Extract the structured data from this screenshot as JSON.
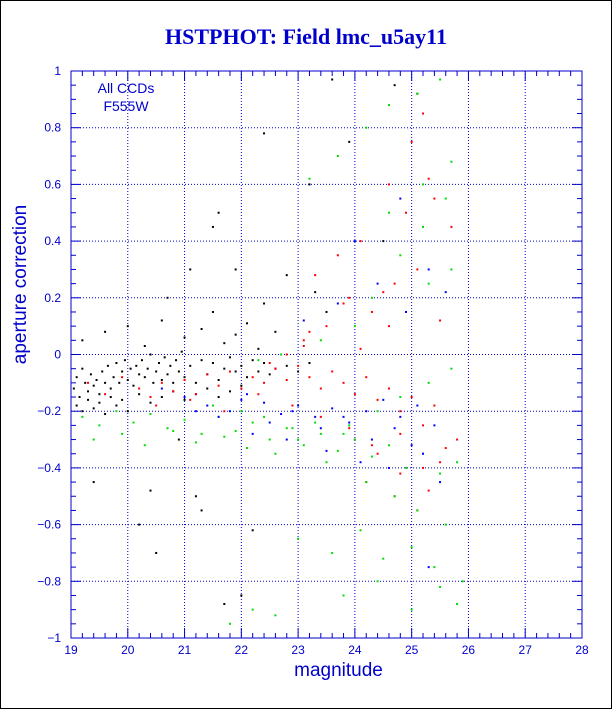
{
  "colors": {
    "axis": "#0000cc",
    "grid": "#0000cc",
    "title": "#0000cc",
    "series": [
      "#000000",
      "#ff0000",
      "#00dd00",
      "#0000ff"
    ]
  },
  "chart_data": {
    "type": "scatter",
    "title": "HSTPHOT: Field lmc_u5ay11",
    "xlabel": "magnitude",
    "ylabel": "aperture correction",
    "xlim": [
      19,
      28
    ],
    "ylim": [
      -1,
      1
    ],
    "grid": true,
    "xticks": [
      19,
      20,
      21,
      22,
      23,
      24,
      25,
      26,
      27,
      28
    ],
    "yticks": [
      -1,
      -0.8,
      -0.6,
      -0.4,
      -0.2,
      0,
      0.2,
      0.4,
      0.6,
      0.8,
      1
    ],
    "xtick_labels": [
      "19",
      "20",
      "21",
      "22",
      "23",
      "24",
      "25",
      "26",
      "27",
      "28"
    ],
    "ytick_labels": [
      "−1",
      "−0.8",
      "−0.6",
      "−0.4",
      "−0.2",
      "0",
      "0.2",
      "0.4",
      "0.6",
      "0.8",
      "1"
    ],
    "annotations": [
      "All CCDs",
      "F555W"
    ],
    "series": [
      {
        "color": "#000000",
        "x": [
          19.05,
          19.1,
          19.15,
          19.2,
          19.25,
          19.3,
          19.35,
          19.4,
          19.45,
          19.5,
          19.55,
          19.6,
          19.65,
          19.7,
          19.75,
          19.8,
          19.85,
          19.9,
          19.95,
          20.0,
          20.05,
          20.1,
          20.15,
          20.2,
          20.25,
          20.3,
          20.35,
          20.4,
          20.45,
          20.5,
          20.55,
          20.6,
          20.65,
          20.7,
          20.75,
          20.8,
          20.85,
          20.9,
          20.95,
          21.0,
          21.1,
          21.2,
          21.3,
          21.4,
          21.5,
          21.6,
          21.7,
          21.8,
          21.9,
          22.0,
          22.1,
          22.2,
          22.3,
          22.4,
          22.5,
          22.6,
          22.8,
          23.0,
          23.2,
          19.1,
          19.2,
          19.3,
          19.4,
          19.5,
          19.6,
          19.7,
          19.8,
          19.9,
          20.0,
          20.2,
          20.4,
          20.6,
          20.8,
          21.0,
          21.2,
          21.4,
          21.6,
          21.8,
          22.0,
          19.2,
          19.6,
          20.0,
          20.3,
          20.6,
          21.0,
          21.3,
          21.5,
          21.7,
          21.9,
          22.1,
          22.3,
          22.4,
          22.6,
          23.3,
          23.5,
          21.6,
          21.5,
          22.4,
          21.1,
          20.7,
          19.4,
          20.5,
          21.2,
          20.2,
          20.9,
          22.8,
          23.9,
          24.5,
          23.2,
          21.9,
          22.0,
          21.3,
          20.4,
          21.7,
          22.2,
          23.6,
          24.7,
          25.1
        ],
        "y": [
          -0.12,
          -0.08,
          -0.15,
          -0.05,
          -0.1,
          -0.13,
          -0.07,
          -0.11,
          -0.09,
          -0.14,
          -0.06,
          -0.1,
          -0.04,
          -0.12,
          -0.08,
          -0.03,
          -0.1,
          -0.06,
          -0.02,
          -0.09,
          -0.05,
          -0.11,
          -0.04,
          -0.07,
          -0.02,
          -0.08,
          -0.05,
          0.0,
          -0.1,
          -0.06,
          -0.03,
          -0.09,
          -0.01,
          -0.07,
          -0.04,
          -0.1,
          -0.02,
          -0.06,
          0.01,
          -0.08,
          -0.04,
          -0.1,
          -0.02,
          -0.07,
          -0.03,
          -0.09,
          -0.05,
          -0.01,
          -0.06,
          -0.04,
          -0.08,
          -0.02,
          -0.06,
          -0.03,
          -0.07,
          -0.05,
          -0.04,
          -0.06,
          -0.03,
          -0.18,
          -0.2,
          -0.16,
          -0.19,
          -0.17,
          -0.21,
          -0.15,
          -0.18,
          -0.16,
          -0.2,
          -0.14,
          -0.17,
          -0.15,
          -0.13,
          -0.16,
          -0.14,
          -0.12,
          -0.15,
          -0.13,
          -0.11,
          0.05,
          0.08,
          0.1,
          0.03,
          0.12,
          0.06,
          0.09,
          0.15,
          0.04,
          0.07,
          0.11,
          0.02,
          0.18,
          0.08,
          0.22,
          0.15,
          0.5,
          0.45,
          0.78,
          0.3,
          0.2,
          -0.45,
          -0.7,
          -0.5,
          -0.6,
          -0.3,
          0.28,
          0.75,
          0.4,
          0.6,
          0.3,
          -0.85,
          -0.55,
          -0.48,
          -0.88,
          -0.62,
          0.97,
          0.95,
          0.92
        ]
      },
      {
        "color": "#ff0000",
        "x": [
          19.3,
          19.6,
          19.9,
          20.2,
          20.4,
          20.6,
          20.8,
          21.0,
          21.2,
          21.4,
          21.6,
          21.8,
          22.0,
          22.2,
          22.4,
          22.6,
          22.8,
          23.0,
          23.2,
          23.4,
          23.6,
          23.8,
          24.0,
          24.2,
          24.4,
          24.6,
          24.8,
          25.0,
          25.2,
          25.4,
          20.5,
          21.1,
          21.7,
          22.3,
          22.9,
          23.1,
          23.5,
          23.9,
          24.3,
          24.7,
          25.1,
          25.5,
          23.3,
          23.7,
          24.1,
          24.5,
          24.9,
          25.3,
          25.7,
          24.0,
          24.4,
          24.8,
          25.2,
          25.6,
          23.2,
          23.8,
          24.6,
          25.0,
          25.4,
          24.2,
          24.7,
          25.1,
          25.5,
          23.4,
          23.9,
          24.3,
          24.8,
          25.3,
          25.8,
          24.1,
          24.6,
          25.2,
          22.5,
          22.8,
          23.1
        ],
        "y": [
          -0.1,
          -0.14,
          -0.08,
          -0.12,
          -0.15,
          -0.1,
          -0.13,
          -0.09,
          -0.14,
          -0.07,
          -0.11,
          -0.06,
          -0.12,
          -0.08,
          -0.1,
          -0.05,
          -0.09,
          -0.04,
          -0.08,
          -0.12,
          -0.06,
          -0.1,
          -0.14,
          -0.08,
          -0.16,
          -0.12,
          -0.2,
          -0.15,
          -0.25,
          -0.18,
          -0.18,
          -0.16,
          -0.2,
          -0.14,
          -0.18,
          0.05,
          0.1,
          0.2,
          0.15,
          0.25,
          0.3,
          0.12,
          0.28,
          0.35,
          0.4,
          0.22,
          0.5,
          0.62,
          0.45,
          -0.3,
          -0.35,
          -0.28,
          -0.4,
          -0.33,
          0.08,
          0.18,
          0.6,
          0.75,
          0.55,
          -0.45,
          -0.5,
          -0.55,
          -0.38,
          -0.22,
          -0.26,
          -0.32,
          -0.42,
          -0.48,
          -0.3,
          0.02,
          0.1,
          0.85,
          -0.03,
          0.0,
          0.03
        ]
      },
      {
        "color": "#00dd00",
        "x": [
          19.2,
          19.5,
          19.8,
          20.1,
          20.4,
          20.7,
          21.0,
          21.3,
          21.6,
          21.9,
          22.2,
          22.5,
          22.8,
          23.1,
          23.4,
          23.7,
          24.0,
          24.3,
          24.6,
          24.9,
          25.2,
          25.5,
          25.8,
          19.4,
          19.9,
          20.3,
          20.8,
          21.2,
          21.7,
          22.1,
          22.6,
          23.0,
          23.5,
          23.9,
          24.4,
          24.8,
          25.3,
          25.7,
          21.5,
          22.0,
          22.4,
          22.9,
          23.3,
          23.8,
          24.2,
          24.7,
          25.1,
          25.6,
          23.0,
          23.6,
          24.1,
          24.5,
          25.0,
          25.4,
          25.9,
          24.3,
          24.8,
          25.2,
          25.6,
          23.2,
          23.7,
          24.2,
          24.6,
          25.1,
          25.5,
          22.3,
          22.7,
          23.4,
          24.0,
          24.9,
          25.3,
          25.7,
          23.8,
          24.4,
          25.0,
          25.5,
          25.8,
          24.6,
          25.2,
          25.7,
          21.8,
          22.2,
          22.6
        ],
        "y": [
          -0.22,
          -0.25,
          -0.2,
          -0.24,
          -0.21,
          -0.26,
          -0.23,
          -0.28,
          -0.22,
          -0.27,
          -0.24,
          -0.3,
          -0.26,
          -0.32,
          -0.28,
          -0.34,
          -0.3,
          -0.36,
          -0.32,
          -0.4,
          -0.35,
          -0.42,
          -0.38,
          -0.3,
          -0.28,
          -0.32,
          -0.27,
          -0.31,
          -0.29,
          -0.33,
          -0.35,
          -0.3,
          -0.38,
          -0.25,
          -0.2,
          -0.15,
          -0.1,
          -0.05,
          -0.18,
          -0.2,
          -0.22,
          -0.26,
          -0.24,
          -0.28,
          -0.45,
          -0.5,
          -0.55,
          -0.6,
          -0.65,
          -0.7,
          -0.62,
          -0.72,
          -0.68,
          -0.75,
          -0.8,
          0.2,
          0.35,
          0.45,
          0.55,
          0.62,
          0.7,
          0.8,
          0.88,
          0.92,
          0.97,
          -0.02,
          0.0,
          0.05,
          0.1,
          0.15,
          0.25,
          0.3,
          -0.85,
          -0.8,
          -0.9,
          -0.82,
          -0.88,
          0.5,
          0.6,
          0.68,
          -0.95,
          -0.9,
          -0.92
        ]
      },
      {
        "color": "#0000ff",
        "x": [
          20.6,
          21.0,
          21.4,
          21.8,
          22.1,
          22.4,
          22.7,
          23.0,
          23.3,
          23.6,
          23.9,
          24.2,
          24.5,
          24.8,
          25.1,
          25.4,
          21.2,
          21.6,
          22.0,
          22.5,
          22.9,
          23.4,
          23.8,
          24.3,
          24.7,
          25.2,
          23.1,
          23.7,
          24.4,
          24.9,
          25.3,
          25.6,
          22.2,
          22.8,
          23.5,
          24.1,
          24.6,
          25.0,
          25.5,
          24.0,
          24.8,
          25.3
        ],
        "y": [
          -0.12,
          -0.15,
          -0.18,
          -0.2,
          -0.14,
          -0.17,
          -0.21,
          -0.18,
          -0.22,
          -0.19,
          -0.24,
          -0.2,
          -0.16,
          -0.22,
          -0.18,
          -0.25,
          -0.2,
          -0.22,
          -0.16,
          -0.24,
          -0.2,
          -0.26,
          -0.22,
          -0.3,
          -0.26,
          -0.35,
          0.12,
          0.18,
          0.25,
          0.15,
          0.3,
          0.22,
          -0.28,
          -0.3,
          -0.34,
          -0.38,
          -0.4,
          -0.32,
          -0.45,
          0.4,
          0.55,
          -0.75
        ]
      }
    ]
  }
}
